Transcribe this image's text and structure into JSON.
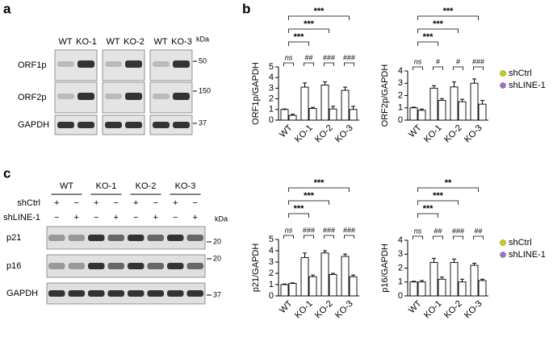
{
  "panel_letters": [
    "a",
    "b",
    "c"
  ],
  "panel_a": {
    "kda_label": "kDa",
    "lane_groups": [
      [
        "WT",
        "KO-1"
      ],
      [
        "WT",
        "KO-2"
      ],
      [
        "WT",
        "KO-3"
      ]
    ],
    "rows": [
      {
        "label": "ORF1p",
        "kda": "50"
      },
      {
        "label": "ORF2p",
        "kda": "150"
      },
      {
        "label": "GAPDH",
        "kda": "37"
      }
    ]
  },
  "panel_c": {
    "kda_label": "kDa",
    "groups": [
      "WT",
      "KO-1",
      "KO-2",
      "KO-3"
    ],
    "conditions": [
      {
        "label": "shCtrl",
        "signs": [
          "+",
          "−",
          "+",
          "−",
          "+",
          "−",
          "+",
          "−"
        ]
      },
      {
        "label": "shLINE-1",
        "signs": [
          "−",
          "+",
          "−",
          "+",
          "−",
          "+",
          "−",
          "+"
        ]
      }
    ],
    "rows": [
      {
        "label": "p21",
        "kda": "20"
      },
      {
        "label": "p16",
        "kda": "20"
      },
      {
        "label": "GAPDH",
        "kda": "37"
      }
    ]
  },
  "chart_data": [
    {
      "type": "bar",
      "ylabel": "ORF1p/GAPDH",
      "categories": [
        "WT",
        "KO-1",
        "KO-2",
        "KO-3"
      ],
      "series": [
        {
          "name": "shCtrl",
          "color": "#c8d200",
          "values": [
            1.0,
            3.1,
            3.3,
            2.8
          ],
          "errors": [
            0.05,
            0.4,
            0.3,
            0.3
          ]
        },
        {
          "name": "shLINE-1",
          "color": "#a56cc8",
          "values": [
            0.45,
            1.1,
            1.05,
            1.0
          ],
          "errors": [
            0.1,
            0.1,
            0.25,
            0.3
          ]
        }
      ],
      "ylim": [
        0,
        5
      ],
      "yticks": [
        0,
        1,
        2,
        3,
        4,
        5
      ],
      "group_labels": [
        "ns",
        "##",
        "###",
        "###"
      ],
      "comparisons": [
        "***",
        "***",
        "***"
      ],
      "legend": "none"
    },
    {
      "type": "bar",
      "ylabel": "ORF2p/GAPDH",
      "categories": [
        "WT",
        "KO-1",
        "KO-2",
        "KO-3"
      ],
      "series": [
        {
          "name": "shCtrl",
          "color": "#c8d200",
          "values": [
            1.0,
            2.6,
            2.7,
            3.0
          ],
          "errors": [
            0.05,
            0.2,
            0.4,
            0.35
          ]
        },
        {
          "name": "shLINE-1",
          "color": "#a56cc8",
          "values": [
            0.8,
            1.6,
            1.5,
            1.3
          ],
          "errors": [
            0.1,
            0.15,
            0.2,
            0.3
          ]
        }
      ],
      "ylim": [
        0,
        4
      ],
      "yticks": [
        0,
        1,
        2,
        3,
        4
      ],
      "group_labels": [
        "ns",
        "#",
        "#",
        "###"
      ],
      "comparisons": [
        "***",
        "***",
        "***"
      ],
      "legend": "right"
    },
    {
      "type": "bar",
      "ylabel": "p21/GAPDH",
      "categories": [
        "WT",
        "KO-1",
        "KO-2",
        "KO-3"
      ],
      "series": [
        {
          "name": "shCtrl",
          "color": "#c8d200",
          "values": [
            1.0,
            3.4,
            3.8,
            3.5
          ],
          "errors": [
            0.05,
            0.4,
            0.2,
            0.2
          ]
        },
        {
          "name": "shLINE-1",
          "color": "#a56cc8",
          "values": [
            1.1,
            1.7,
            1.9,
            1.7
          ],
          "errors": [
            0.05,
            0.15,
            0.1,
            0.15
          ]
        }
      ],
      "ylim": [
        0,
        5
      ],
      "yticks": [
        0,
        1,
        2,
        3,
        4,
        5
      ],
      "group_labels": [
        "ns",
        "###",
        "###",
        "###"
      ],
      "comparisons": [
        "***",
        "***",
        "***"
      ],
      "legend": "none"
    },
    {
      "type": "bar",
      "ylabel": "p16/GAPDH",
      "categories": [
        "WT",
        "KO-1",
        "KO-2",
        "KO-3"
      ],
      "series": [
        {
          "name": "shCtrl",
          "color": "#c8d200",
          "values": [
            1.0,
            2.4,
            2.4,
            2.2
          ],
          "errors": [
            0.05,
            0.3,
            0.25,
            0.15
          ]
        },
        {
          "name": "shLINE-1",
          "color": "#a56cc8",
          "values": [
            1.0,
            1.2,
            1.0,
            1.1
          ],
          "errors": [
            0.1,
            0.15,
            0.2,
            0.1
          ]
        }
      ],
      "ylim": [
        0,
        4
      ],
      "yticks": [
        0,
        1,
        2,
        3,
        4
      ],
      "group_labels": [
        "ns",
        "##",
        "###",
        "##"
      ],
      "comparisons": [
        "***",
        "***",
        "**"
      ],
      "legend": "right"
    }
  ]
}
